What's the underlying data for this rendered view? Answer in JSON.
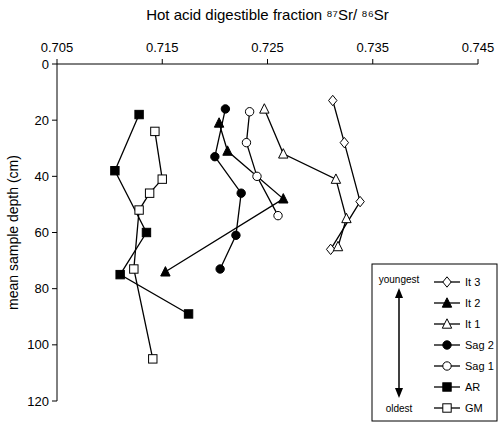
{
  "chart_data": {
    "type": "line",
    "x_label": "Hot acid digestible fraction ⁸⁷Sr/ ⁸⁶Sr",
    "y_label": "mean sample depth (cm)",
    "xlim": [
      0.705,
      0.745
    ],
    "xticks": [
      0.705,
      0.715,
      0.725,
      0.735,
      0.745
    ],
    "ylim": [
      0,
      120
    ],
    "yticks": [
      0,
      20,
      40,
      60,
      80,
      100,
      120
    ],
    "grid": false,
    "legend": "lower right",
    "annotations": [
      "youngest",
      "oldest"
    ],
    "series": [
      {
        "name": "It 3",
        "color": "#000000",
        "marker": "open-diamond",
        "line_style": "solid",
        "x": [
          0.7312,
          0.7323,
          0.7338,
          0.731
        ],
        "values": [
          13,
          28,
          49,
          66
        ]
      },
      {
        "name": "It 2",
        "color": "#000000",
        "marker": "filled-triangle",
        "line_style": "solid",
        "x": [
          0.7204,
          0.7212,
          0.7265,
          0.7153
        ],
        "values": [
          21,
          31,
          48,
          74
        ]
      },
      {
        "name": "It 1",
        "color": "#000000",
        "marker": "open-triangle",
        "line_style": "solid",
        "x": [
          0.7247,
          0.7265,
          0.7315,
          0.7325,
          0.7317
        ],
        "values": [
          16,
          32,
          41,
          55,
          65
        ]
      },
      {
        "name": "Sag 2",
        "color": "#000000",
        "marker": "filled-circle",
        "line_style": "solid",
        "x": [
          0.721,
          0.72,
          0.7225,
          0.722,
          0.7205
        ],
        "values": [
          16,
          33,
          46,
          61,
          73
        ]
      },
      {
        "name": "Sag 1",
        "color": "#000000",
        "marker": "open-circle",
        "line_style": "solid",
        "x": [
          0.7233,
          0.723,
          0.724,
          0.726
        ],
        "values": [
          17,
          28,
          40,
          54
        ]
      },
      {
        "name": "AR",
        "color": "#000000",
        "marker": "filled-square",
        "line_style": "solid",
        "x": [
          0.7128,
          0.7105,
          0.7135,
          0.711,
          0.7175
        ],
        "values": [
          18,
          38,
          60,
          75,
          89
        ]
      },
      {
        "name": "GM",
        "color": "#000000",
        "marker": "open-square",
        "line_style": "solid",
        "x": [
          0.7143,
          0.715,
          0.7138,
          0.7128,
          0.7123,
          0.7141
        ],
        "values": [
          24,
          41,
          46,
          52,
          73,
          105
        ]
      }
    ]
  }
}
